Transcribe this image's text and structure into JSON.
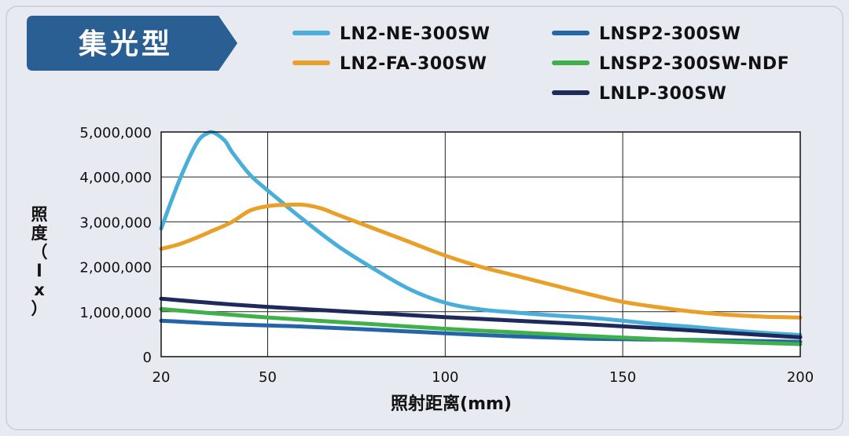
{
  "header": {
    "label": "集光型"
  },
  "colors": {
    "badge": "#2a5f93",
    "LN2-NE-300SW": "#4aaedb",
    "LN2-FA-300SW": "#e9a028",
    "LNSP2-300SW": "#2464a8",
    "LNSP2-300SW-NDF": "#3fb04a",
    "LNLP-300SW": "#1e2a5c"
  },
  "legend": [
    {
      "name": "LN2-NE-300SW",
      "color": "#4aaedb"
    },
    {
      "name": "LN2-FA-300SW",
      "color": "#e9a028"
    },
    {
      "name": "LNSP2-300SW",
      "color": "#2464a8"
    },
    {
      "name": "LNSP2-300SW-NDF",
      "color": "#3fb04a"
    },
    {
      "name": "LNLP-300SW",
      "color": "#1e2a5c"
    }
  ],
  "chart_data": {
    "type": "line",
    "xlabel": "照射距离(mm)",
    "ylabel": "照度（lx）",
    "xlim": [
      20,
      200
    ],
    "ylim": [
      0,
      5000000
    ],
    "x_ticks": [
      20,
      50,
      100,
      150,
      200
    ],
    "x_tick_labels": [
      "20",
      "50",
      "100",
      "150",
      "200"
    ],
    "y_ticks": [
      0,
      1000000,
      2000000,
      3000000,
      4000000,
      5000000
    ],
    "y_tick_labels": [
      "0",
      "1,000,000",
      "2,000,000",
      "3,000,000",
      "4,000,000",
      "5,000,000"
    ],
    "grid": true,
    "legend_position": "top",
    "series": [
      {
        "name": "LN2-NE-300SW",
        "x": [
          20,
          25,
          30,
          33,
          35,
          38,
          40,
          45,
          50,
          60,
          70,
          80,
          90,
          100,
          110,
          120,
          130,
          140,
          150,
          160,
          170,
          180,
          190,
          200
        ],
        "y": [
          2850000,
          3900000,
          4750000,
          4970000,
          4980000,
          4800000,
          4550000,
          4050000,
          3700000,
          3050000,
          2450000,
          1950000,
          1500000,
          1200000,
          1050000,
          980000,
          920000,
          870000,
          800000,
          720000,
          660000,
          590000,
          530000,
          480000
        ]
      },
      {
        "name": "LN2-FA-300SW",
        "x": [
          20,
          25,
          30,
          35,
          40,
          45,
          50,
          55,
          60,
          65,
          70,
          80,
          90,
          100,
          110,
          120,
          130,
          140,
          150,
          160,
          170,
          180,
          190,
          200
        ],
        "y": [
          2400000,
          2500000,
          2650000,
          2820000,
          3000000,
          3250000,
          3350000,
          3380000,
          3380000,
          3300000,
          3150000,
          2850000,
          2550000,
          2250000,
          2000000,
          1800000,
          1600000,
          1400000,
          1220000,
          1100000,
          1000000,
          930000,
          890000,
          870000
        ]
      },
      {
        "name": "LNSP2-300SW",
        "x": [
          20,
          40,
          60,
          80,
          100,
          120,
          140,
          160,
          180,
          200
        ],
        "y": [
          800000,
          720000,
          670000,
          600000,
          520000,
          450000,
          400000,
          380000,
          360000,
          330000
        ]
      },
      {
        "name": "LNSP2-300SW-NDF",
        "x": [
          20,
          40,
          60,
          80,
          100,
          120,
          140,
          160,
          180,
          200
        ],
        "y": [
          1060000,
          930000,
          820000,
          720000,
          620000,
          540000,
          460000,
          390000,
          330000,
          280000
        ]
      },
      {
        "name": "LNLP-300SW",
        "x": [
          20,
          40,
          60,
          80,
          100,
          120,
          140,
          160,
          180,
          200
        ],
        "y": [
          1290000,
          1160000,
          1060000,
          970000,
          880000,
          800000,
          720000,
          630000,
          530000,
          430000
        ]
      }
    ]
  }
}
